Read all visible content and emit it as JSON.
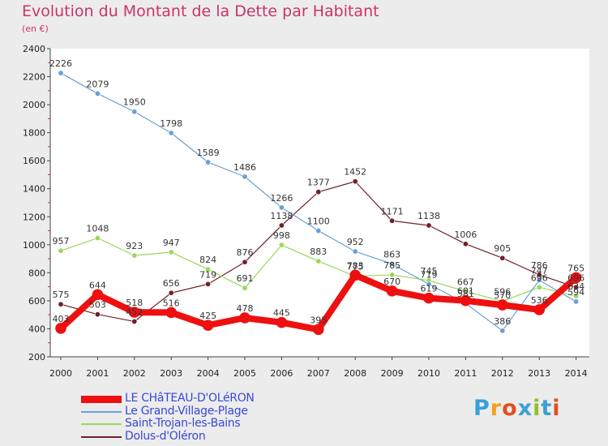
{
  "header": {
    "title": "Evolution du Montant de la Dette par Habitant",
    "subtitle": "(en €)"
  },
  "logo": {
    "text": "Proxiti",
    "colors": [
      "#3aa0d8",
      "#f0a020",
      "#e05020",
      "#3aa0d8",
      "#90c030",
      "#3aa0d8",
      "#e05020"
    ]
  },
  "chart_data": {
    "type": "line",
    "x": [
      "2000",
      "2001",
      "2002",
      "2003",
      "2004",
      "2005",
      "2006",
      "2007",
      "2008",
      "2009",
      "2010",
      "2011",
      "2012",
      "2013",
      "2014"
    ],
    "ylim": [
      200,
      2400
    ],
    "yticks": [
      200,
      400,
      600,
      800,
      1000,
      1200,
      1400,
      1600,
      1800,
      2000,
      2200,
      2400
    ],
    "grid": false,
    "legend": "bottom-left",
    "series": [
      {
        "name": "Dolus-d'Oléron",
        "color": "#702028",
        "width": 1.2,
        "values": [
          575,
          503,
          452,
          656,
          719,
          876,
          1138,
          1377,
          1452,
          1171,
          1138,
          1006,
          905,
          786,
          696
        ]
      },
      {
        "name": "Saint-Trojan-les-Bains",
        "color": "#9ad85c",
        "width": 1.2,
        "values": [
          957,
          1048,
          923,
          947,
          824,
          691,
          998,
          883,
          775,
          785,
          745,
          667,
          596,
          696,
          634
        ]
      },
      {
        "name": "Le Grand-Village-Plage",
        "color": "#6aa0d4",
        "width": 1.2,
        "values": [
          2226,
          2079,
          1950,
          1798,
          1589,
          1486,
          1266,
          1100,
          952,
          863,
          719,
          581,
          386,
          747,
          594
        ]
      },
      {
        "name": "LE CHâTEAU-D'OLéRON",
        "color": "#ee1010",
        "width": 8,
        "values": [
          403,
          644,
          518,
          516,
          425,
          478,
          445,
          395,
          783,
          670,
          619,
          601,
          570,
          536,
          765
        ]
      }
    ]
  }
}
